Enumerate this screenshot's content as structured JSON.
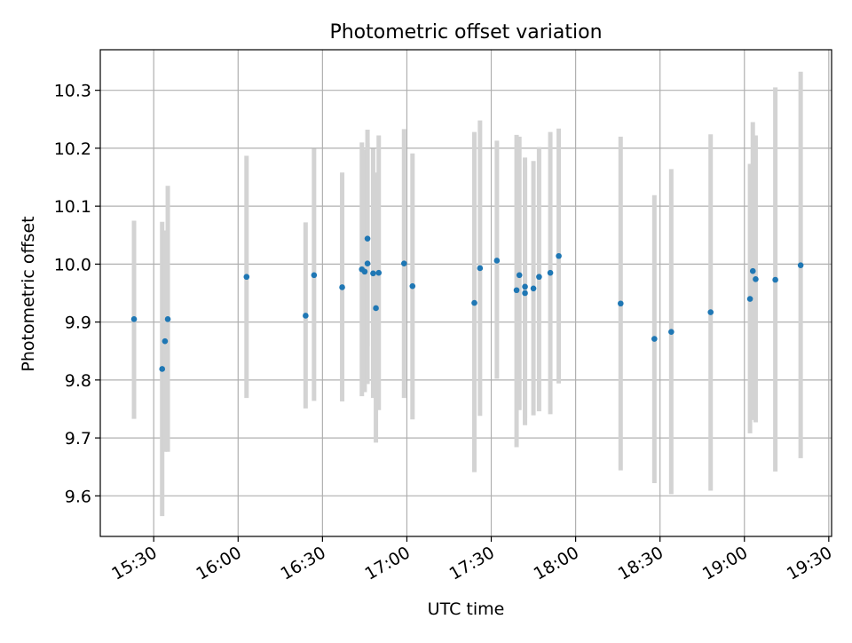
{
  "chart_data": {
    "type": "scatter",
    "title": "Photometric offset variation",
    "xlabel": "UTC time",
    "ylabel": "Photometric offset",
    "x_tick_labels": [
      "15:30",
      "16:00",
      "16:30",
      "17:00",
      "17:30",
      "18:00",
      "18:30",
      "19:00",
      "19:30"
    ],
    "x_ticks": [
      "15:30",
      "16:00",
      "16:30",
      "17:00",
      "17:30",
      "18:00",
      "18:30",
      "19:00",
      "19:30"
    ],
    "y_ticks": [
      9.6,
      9.7,
      9.8,
      9.9,
      10.0,
      10.1,
      10.2,
      10.3
    ],
    "y_tick_labels": [
      "9.6",
      "9.7",
      "9.8",
      "9.9",
      "10.0",
      "10.1",
      "10.2",
      "10.3"
    ],
    "xlim": [
      "15:11",
      "19:31"
    ],
    "ylim": [
      9.53,
      10.37
    ],
    "grid": true,
    "colors": {
      "point": "#1f77b4",
      "errorbar": "#d3d3d3",
      "grid": "#b0b0b0"
    },
    "series": [
      {
        "points": [
          {
            "x": "15:23",
            "y": 9.905,
            "yerr_low": 9.733,
            "yerr_high": 10.075
          },
          {
            "x": "15:33",
            "y": 9.819,
            "yerr_low": 9.565,
            "yerr_high": 10.073
          },
          {
            "x": "15:34",
            "y": 9.867,
            "yerr_low": 9.676,
            "yerr_high": 10.058
          },
          {
            "x": "15:35",
            "y": 9.905,
            "yerr_low": 9.676,
            "yerr_high": 10.135
          },
          {
            "x": "16:03",
            "y": 9.978,
            "yerr_low": 9.769,
            "yerr_high": 10.187
          },
          {
            "x": "16:24",
            "y": 9.911,
            "yerr_low": 9.751,
            "yerr_high": 10.072
          },
          {
            "x": "16:27",
            "y": 9.981,
            "yerr_low": 9.764,
            "yerr_high": 10.199
          },
          {
            "x": "16:37",
            "y": 9.96,
            "yerr_low": 9.763,
            "yerr_high": 10.158
          },
          {
            "x": "16:44",
            "y": 9.991,
            "yerr_low": 9.772,
            "yerr_high": 10.21
          },
          {
            "x": "16:45",
            "y": 9.987,
            "yerr_low": 9.779,
            "yerr_high": 10.198
          },
          {
            "x": "16:46",
            "y": 10.044,
            "yerr_low": 9.858,
            "yerr_high": 10.232
          },
          {
            "x": "16:46",
            "y": 10.001,
            "yerr_low": 9.793,
            "yerr_high": 10.209
          },
          {
            "x": "16:48",
            "y": 9.984,
            "yerr_low": 9.769,
            "yerr_high": 10.199
          },
          {
            "x": "16:49",
            "y": 9.924,
            "yerr_low": 9.692,
            "yerr_high": 10.158
          },
          {
            "x": "16:50",
            "y": 9.985,
            "yerr_low": 9.748,
            "yerr_high": 10.222
          },
          {
            "x": "16:59",
            "y": 10.001,
            "yerr_low": 9.769,
            "yerr_high": 10.233
          },
          {
            "x": "17:02",
            "y": 9.962,
            "yerr_low": 9.732,
            "yerr_high": 10.191
          },
          {
            "x": "17:24",
            "y": 9.933,
            "yerr_low": 9.641,
            "yerr_high": 10.228
          },
          {
            "x": "17:26",
            "y": 9.993,
            "yerr_low": 9.738,
            "yerr_high": 10.248
          },
          {
            "x": "17:32",
            "y": 10.006,
            "yerr_low": 9.802,
            "yerr_high": 10.213
          },
          {
            "x": "17:39",
            "y": 9.955,
            "yerr_low": 9.684,
            "yerr_high": 10.223
          },
          {
            "x": "17:40",
            "y": 9.981,
            "yerr_low": 9.748,
            "yerr_high": 10.22
          },
          {
            "x": "17:42",
            "y": 9.961,
            "yerr_low": 9.722,
            "yerr_high": 10.184
          },
          {
            "x": "17:42",
            "y": 9.95,
            "yerr_low": 9.734,
            "yerr_high": 10.17
          },
          {
            "x": "17:45",
            "y": 9.958,
            "yerr_low": 9.739,
            "yerr_high": 10.178
          },
          {
            "x": "17:47",
            "y": 9.978,
            "yerr_low": 9.746,
            "yerr_high": 10.202
          },
          {
            "x": "17:51",
            "y": 9.985,
            "yerr_low": 9.741,
            "yerr_high": 10.228
          },
          {
            "x": "17:54",
            "y": 10.014,
            "yerr_low": 9.794,
            "yerr_high": 10.234
          },
          {
            "x": "18:16",
            "y": 9.932,
            "yerr_low": 9.644,
            "yerr_high": 10.22
          },
          {
            "x": "18:28",
            "y": 9.871,
            "yerr_low": 9.622,
            "yerr_high": 10.119
          },
          {
            "x": "18:34",
            "y": 9.883,
            "yerr_low": 9.603,
            "yerr_high": 10.164
          },
          {
            "x": "18:48",
            "y": 9.917,
            "yerr_low": 9.609,
            "yerr_high": 10.224
          },
          {
            "x": "19:02",
            "y": 9.94,
            "yerr_low": 9.708,
            "yerr_high": 10.173
          },
          {
            "x": "19:03",
            "y": 9.988,
            "yerr_low": 9.731,
            "yerr_high": 10.245
          },
          {
            "x": "19:04",
            "y": 9.974,
            "yerr_low": 9.727,
            "yerr_high": 10.222
          },
          {
            "x": "19:11",
            "y": 9.973,
            "yerr_low": 9.642,
            "yerr_high": 10.305
          },
          {
            "x": "19:20",
            "y": 9.998,
            "yerr_low": 9.665,
            "yerr_high": 10.332
          }
        ]
      }
    ]
  }
}
